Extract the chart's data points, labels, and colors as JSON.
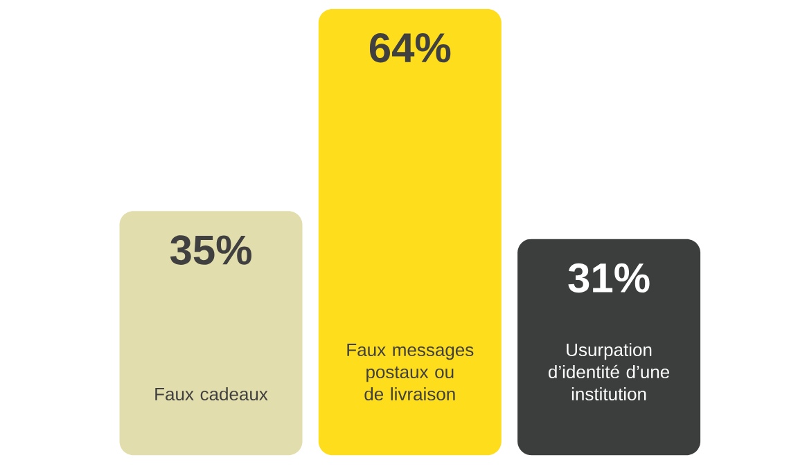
{
  "chart_data": {
    "type": "bar",
    "categories": [
      "Faux cadeaux",
      "Faux messages postaux ou de livraison",
      "Usurpation d’identité d’une institution"
    ],
    "values": [
      35,
      64,
      31
    ],
    "colors": [
      "#e2ddac",
      "#fddd1c",
      "#3c3e3e"
    ],
    "value_labels": [
      "35%",
      "64%",
      "31%"
    ]
  }
}
